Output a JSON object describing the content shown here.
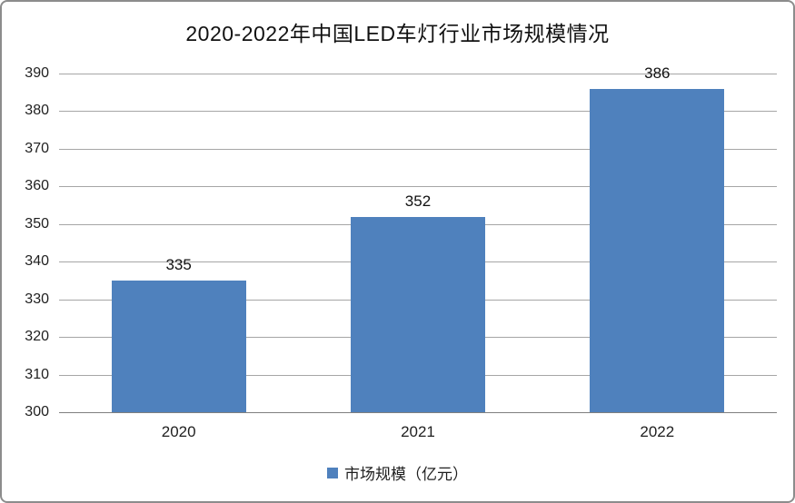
{
  "chart_data": {
    "type": "bar",
    "title": "2020-2022年中国LED车灯行业市场规模情况",
    "categories": [
      "2020",
      "2021",
      "2022"
    ],
    "series": [
      {
        "name": "市场规模（亿元）",
        "values": [
          335,
          352,
          386
        ]
      }
    ],
    "ylim": [
      300,
      390
    ],
    "ytick_step": 10,
    "yticks": [
      300,
      310,
      320,
      330,
      340,
      350,
      360,
      370,
      380,
      390
    ],
    "grid": true,
    "legend_position": "bottom",
    "colors": {
      "bar": "#4f81bd",
      "gridline": "#a6a6a6",
      "axis_line": "#7f7f7f",
      "text": "#1a1a1a",
      "frame_border": "#8c8c8c"
    }
  },
  "legend": {
    "label": "市场规模（亿元）"
  }
}
